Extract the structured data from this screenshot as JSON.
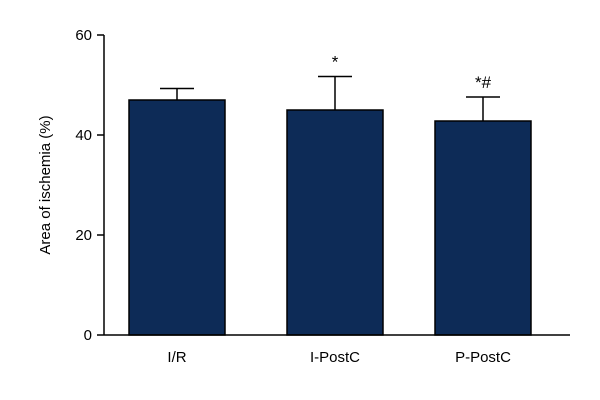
{
  "chart_data": {
    "type": "bar",
    "title": "",
    "xlabel": "",
    "ylabel": "Area of ischemia (%)",
    "ylim": [
      0,
      60
    ],
    "yticks": [
      0,
      20,
      40,
      60
    ],
    "categories": [
      "I/R",
      "I-PostC",
      "P-PostC"
    ],
    "values": [
      47,
      45,
      42.8
    ],
    "error_upper": [
      2.3,
      6.7,
      4.8
    ],
    "significance": [
      "",
      "*",
      "*#"
    ],
    "bar_color": "#0d2b57",
    "grid": false,
    "legend": "none"
  }
}
